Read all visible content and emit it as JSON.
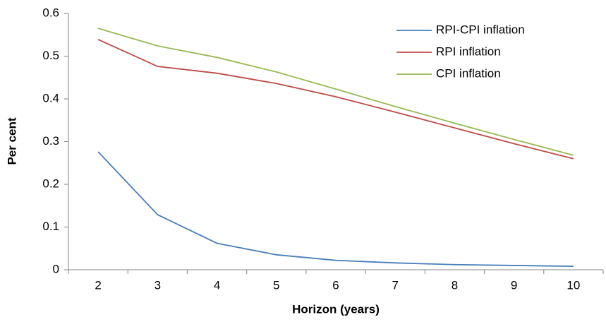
{
  "chart_data": {
    "type": "line",
    "x_label": "Horizon (years)",
    "y_label": "Per cent",
    "categories": [
      "2",
      "3",
      "4",
      "5",
      "6",
      "7",
      "8",
      "9",
      "10"
    ],
    "series": [
      {
        "name": "RPI-CPI inflation",
        "color": "#4a7ebb",
        "values": [
          0.276,
          0.129,
          0.062,
          0.035,
          0.022,
          0.016,
          0.012,
          0.01,
          0.008
        ]
      },
      {
        "name": "RPI inflation",
        "color": "#be4b48",
        "values": [
          0.539,
          0.476,
          0.46,
          0.436,
          0.405,
          0.369,
          0.332,
          0.295,
          0.26
        ]
      },
      {
        "name": "CPI inflation",
        "color": "#98b954",
        "values": [
          0.565,
          0.524,
          0.497,
          0.463,
          0.423,
          0.382,
          0.343,
          0.305,
          0.268
        ]
      }
    ],
    "ylim": [
      0,
      0.6
    ],
    "yticks": [
      0,
      0.1,
      0.2,
      0.3,
      0.4,
      0.5,
      0.6
    ],
    "grid": false,
    "legend": "top-right"
  }
}
